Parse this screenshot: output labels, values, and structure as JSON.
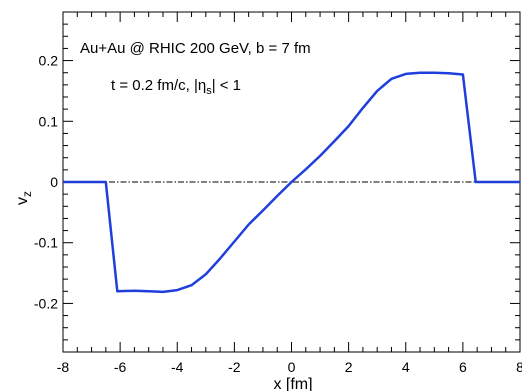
{
  "chart_data": {
    "type": "line",
    "xlabel": "x  [fm]",
    "ylabel": "v",
    "ylabel_sub": "z",
    "xlim": [
      -8,
      8
    ],
    "ylim": [
      -0.28,
      0.28
    ],
    "xticks": [
      -8,
      -6,
      -4,
      -2,
      0,
      2,
      4,
      6,
      8
    ],
    "yticks": [
      -0.2,
      -0.1,
      0,
      0.1,
      0.2
    ],
    "xtick_labels": [
      "-8",
      "-6",
      "-4",
      "-2",
      "0",
      "2",
      "4",
      "6",
      "8"
    ],
    "ytick_labels": [
      "-0.2",
      "-0.1",
      "0",
      "0.1",
      "0.2"
    ],
    "annotations": {
      "line1": "Au+Au @ RHIC 200 GeV,   b = 7 fm",
      "line2_pre": "t = 0.2 fm/c,   |η",
      "line2_sub": "s",
      "line2_post": "| < 1"
    },
    "reference_line": {
      "y": 0,
      "style": "dash-dot"
    },
    "series": [
      {
        "color": "#1f3fdd",
        "x": [
          -8,
          -6.5,
          -6.1,
          -5.5,
          -5.0,
          -4.5,
          -4.0,
          -3.5,
          -3.0,
          -2.5,
          -2.0,
          -1.5,
          -1.0,
          -0.5,
          0.0,
          0.5,
          1.0,
          1.5,
          2.0,
          2.5,
          3.0,
          3.5,
          4.0,
          4.5,
          5.0,
          5.5,
          6.0,
          6.45,
          8
        ],
        "y": [
          0,
          0,
          -0.18,
          -0.179,
          -0.18,
          -0.181,
          -0.178,
          -0.17,
          -0.152,
          -0.126,
          -0.098,
          -0.07,
          -0.047,
          -0.023,
          0.0,
          0.021,
          0.043,
          0.067,
          0.092,
          0.122,
          0.15,
          0.17,
          0.178,
          0.18,
          0.18,
          0.179,
          0.177,
          0,
          0
        ]
      }
    ]
  }
}
